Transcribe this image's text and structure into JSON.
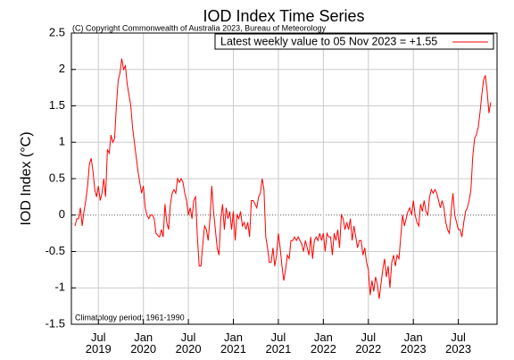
{
  "chart_data": {
    "type": "line",
    "title": "IOD Index Time Series",
    "annotations": [
      "(C) Copyright Commonwealth of Australia 2023, Bureau of Meteorology",
      "Climatology period: 1961-1990"
    ],
    "y_label": "IOD Index (°C)",
    "xlim": [
      2019.2,
      2023.93
    ],
    "xticks": [
      {
        "value": 2019.5,
        "label": "Jul 2019"
      },
      {
        "value": 2020,
        "label": "Jan 2020"
      },
      {
        "value": 2020.5,
        "label": "Jul 2020"
      },
      {
        "value": 2021,
        "label": "Jan 2021"
      },
      {
        "value": 2021.5,
        "label": "Jul 2021"
      },
      {
        "value": 2022,
        "label": "Jan 2022"
      },
      {
        "value": 2022.5,
        "label": "Jul 2022"
      },
      {
        "value": 2023,
        "label": "Jan 2023"
      },
      {
        "value": 2023.5,
        "label": "Jul 2023"
      }
    ],
    "ylim": [
      -1.5,
      2.5
    ],
    "yticks": [
      2.5,
      2,
      1.5,
      1,
      0.5,
      0,
      -0.5,
      -1,
      -1.5
    ],
    "grid": true,
    "legend": "top-right",
    "x": [
      2019.24,
      2019.26,
      2019.28,
      2019.3,
      2019.32,
      2019.34,
      2019.36,
      2019.38,
      2019.4,
      2019.42,
      2019.44,
      2019.46,
      2019.48,
      2019.5,
      2019.52,
      2019.54,
      2019.56,
      2019.58,
      2019.6,
      2019.62,
      2019.64,
      2019.66,
      2019.68,
      2019.7,
      2019.72,
      2019.74,
      2019.76,
      2019.78,
      2019.8,
      2019.82,
      2019.84,
      2019.86,
      2019.88,
      2019.9,
      2019.92,
      2019.94,
      2019.96,
      2019.98,
      2020.0,
      2020.02,
      2020.04,
      2020.06,
      2020.08,
      2020.1,
      2020.12,
      2020.14,
      2020.16,
      2020.18,
      2020.2,
      2020.22,
      2020.24,
      2020.26,
      2020.28,
      2020.3,
      2020.32,
      2020.34,
      2020.36,
      2020.38,
      2020.4,
      2020.42,
      2020.44,
      2020.46,
      2020.48,
      2020.5,
      2020.52,
      2020.54,
      2020.56,
      2020.58,
      2020.6,
      2020.62,
      2020.64,
      2020.66,
      2020.68,
      2020.7,
      2020.72,
      2020.74,
      2020.76,
      2020.78,
      2020.8,
      2020.82,
      2020.84,
      2020.86,
      2020.88,
      2020.9,
      2020.92,
      2020.94,
      2020.96,
      2020.98,
      2021.0,
      2021.02,
      2021.04,
      2021.06,
      2021.08,
      2021.1,
      2021.12,
      2021.14,
      2021.16,
      2021.18,
      2021.2,
      2021.22,
      2021.24,
      2021.26,
      2021.28,
      2021.3,
      2021.32,
      2021.34,
      2021.36,
      2021.38,
      2021.4,
      2021.42,
      2021.44,
      2021.46,
      2021.48,
      2021.5,
      2021.52,
      2021.54,
      2021.56,
      2021.58,
      2021.6,
      2021.62,
      2021.64,
      2021.66,
      2021.68,
      2021.7,
      2021.72,
      2021.74,
      2021.76,
      2021.78,
      2021.8,
      2021.82,
      2021.84,
      2021.86,
      2021.88,
      2021.9,
      2021.92,
      2021.94,
      2021.96,
      2021.98,
      2022.0,
      2022.02,
      2022.04,
      2022.06,
      2022.08,
      2022.1,
      2022.12,
      2022.14,
      2022.16,
      2022.18,
      2022.2,
      2022.22,
      2022.24,
      2022.26,
      2022.28,
      2022.3,
      2022.32,
      2022.34,
      2022.36,
      2022.38,
      2022.4,
      2022.42,
      2022.44,
      2022.46,
      2022.48,
      2022.5,
      2022.52,
      2022.54,
      2022.56,
      2022.58,
      2022.6,
      2022.62,
      2022.64,
      2022.66,
      2022.68,
      2022.7,
      2022.72,
      2022.74,
      2022.76,
      2022.78,
      2022.8,
      2022.82,
      2022.84,
      2022.86,
      2022.88,
      2022.9,
      2022.92,
      2022.94,
      2022.96,
      2022.98,
      2023.0,
      2023.02,
      2023.04,
      2023.06,
      2023.08,
      2023.1,
      2023.12,
      2023.14,
      2023.16,
      2023.18,
      2023.2,
      2023.22,
      2023.24,
      2023.26,
      2023.28,
      2023.3,
      2023.32,
      2023.34,
      2023.36,
      2023.38,
      2023.4,
      2023.42,
      2023.44,
      2023.46,
      2023.48,
      2023.5,
      2023.52,
      2023.54,
      2023.56,
      2023.58,
      2023.6,
      2023.62,
      2023.64,
      2023.66,
      2023.68,
      2023.7,
      2023.72,
      2023.74,
      2023.76,
      2023.78,
      2023.8,
      2023.82,
      2023.84,
      2023.86
    ],
    "series": [
      {
        "name": "Latest weekly value to 05 Nov 2023 = +1.55",
        "color": "#ff0000",
        "values": [
          -0.15,
          -0.05,
          -0.05,
          0.1,
          -0.15,
          0.05,
          0.2,
          0.4,
          0.7,
          0.78,
          0.6,
          0.35,
          0.25,
          0.4,
          0.2,
          0.3,
          0.5,
          0.25,
          0.9,
          0.85,
          1.1,
          1.0,
          1.05,
          1.5,
          1.85,
          1.95,
          2.15,
          2.0,
          2.05,
          1.8,
          1.65,
          1.5,
          1.2,
          1.0,
          0.8,
          0.6,
          0.45,
          0.3,
          0.4,
          0.1,
          0.0,
          -0.05,
          0.0,
          0.0,
          -0.05,
          -0.25,
          -0.28,
          -0.3,
          -0.2,
          -0.3,
          0.15,
          -0.1,
          -0.2,
          0.15,
          0.3,
          0.35,
          0.3,
          0.5,
          0.45,
          0.5,
          0.45,
          0.3,
          0.2,
          0.0,
          0.1,
          -0.05,
          0.2,
          0.25,
          -0.3,
          -0.7,
          -0.7,
          -0.4,
          -0.15,
          -0.2,
          -0.35,
          -0.05,
          0.4,
          0.05,
          -0.2,
          -0.45,
          -0.55,
          -0.05,
          0.15,
          -0.2,
          0.1,
          -0.05,
          0.05,
          -0.2,
          0.05,
          -0.35,
          0.0,
          -0.05,
          0.05,
          -0.15,
          -0.1,
          -0.2,
          -0.1,
          -0.3,
          0.2,
          0.2,
          0.15,
          0.1,
          0.25,
          0.3,
          0.5,
          0.35,
          -0.3,
          -0.45,
          -0.65,
          -0.65,
          -0.45,
          -0.7,
          -0.55,
          -0.25,
          -0.45,
          -0.7,
          -0.9,
          -0.75,
          -0.55,
          -0.6,
          -0.35,
          -0.35,
          -0.3,
          -0.35,
          -0.3,
          -0.35,
          -0.4,
          -0.5,
          -0.35,
          -0.45,
          -0.55,
          -0.3,
          -0.6,
          -0.35,
          -0.3,
          -0.35,
          -0.25,
          -0.35,
          -0.25,
          -0.5,
          -0.25,
          -0.3,
          -0.3,
          -0.55,
          -0.25,
          -0.35,
          -0.2,
          -0.45,
          0.0,
          -0.05,
          -0.2,
          -0.1,
          -0.2,
          -0.05,
          -0.35,
          -0.15,
          -0.3,
          -0.45,
          -0.35,
          -0.35,
          -0.55,
          -0.45,
          -0.65,
          -0.75,
          -1.1,
          -0.9,
          -1.05,
          -0.85,
          -0.95,
          -1.15,
          -0.95,
          -0.75,
          -0.6,
          -0.85,
          -0.7,
          -1.0,
          -0.65,
          -0.55,
          -0.7,
          -0.55,
          -0.6,
          -0.3,
          0.0,
          -0.15,
          -0.05,
          0.05,
          0.1,
          0.0,
          0.2,
          0.0,
          -0.1,
          -0.15,
          0.15,
          0.05,
          0.2,
          0.05,
          0.0,
          0.25,
          0.35,
          0.3,
          0.35,
          0.3,
          0.2,
          0.1,
          0.2,
          0.1,
          -0.1,
          -0.2,
          -0.25,
          0.05,
          0.3,
          0.0,
          -0.1,
          -0.2,
          -0.2,
          -0.3,
          -0.1,
          0.05,
          0.1,
          0.2,
          0.35,
          0.8,
          1.05,
          1.1,
          1.2,
          1.4,
          1.65,
          1.85,
          1.92,
          1.7,
          1.4,
          1.55
        ]
      }
    ]
  }
}
